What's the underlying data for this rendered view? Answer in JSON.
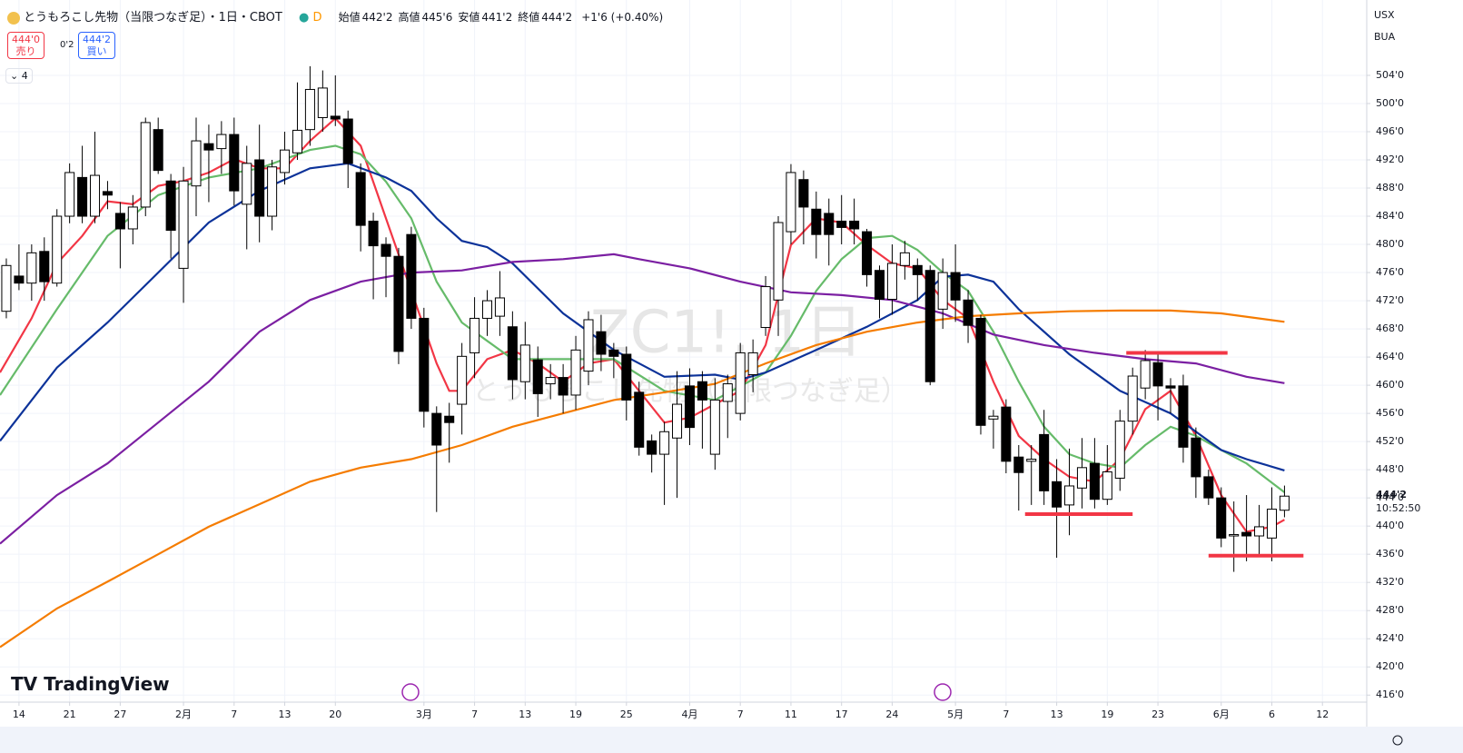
{
  "header": {
    "title": "とうもろこし先物（当限つなぎ足）・1日・CBOT",
    "badge": "D",
    "quote": [
      {
        "label": "始値",
        "value": "442'2"
      },
      {
        "label": "高値",
        "value": "445'6"
      },
      {
        "label": "安値",
        "value": "441'2"
      },
      {
        "label": "終値",
        "value": "444'2"
      }
    ],
    "change": "+1'6 (+0.40%)",
    "sell_price": "444'0",
    "sell": "売り",
    "spread": "0'2",
    "buy_price": "444'2",
    "buy": "買い",
    "indicators": "4",
    "currency": "USX",
    "unit": "BUA"
  },
  "watermark": {
    "symbol": "ZC1!, 1日",
    "name": "とうもろこし先物（当限つなぎ足）"
  },
  "logo": "TradingView",
  "price_label": "444'2",
  "countdown": "10:52:50",
  "chart_data": {
    "type": "candlestick",
    "xlim": [
      -0.5,
      107.5
    ],
    "ylim": [
      415,
      514.7
    ],
    "grid": true,
    "yticks": [
      {
        "value": 416,
        "label": "416'0"
      },
      {
        "value": 420,
        "label": "420'0"
      },
      {
        "value": 424,
        "label": "424'0"
      },
      {
        "value": 428,
        "label": "428'0"
      },
      {
        "value": 432,
        "label": "432'0"
      },
      {
        "value": 436,
        "label": "436'0"
      },
      {
        "value": 440,
        "label": "440'0"
      },
      {
        "value": 444,
        "label": "444'0"
      },
      {
        "value": 448,
        "label": "448'0"
      },
      {
        "value": 452,
        "label": "452'0"
      },
      {
        "value": 456,
        "label": "456'0"
      },
      {
        "value": 460,
        "label": "460'0"
      },
      {
        "value": 464,
        "label": "464'0"
      },
      {
        "value": 468,
        "label": "468'0"
      },
      {
        "value": 472,
        "label": "472'0"
      },
      {
        "value": 476,
        "label": "476'0"
      },
      {
        "value": 480,
        "label": "480'0"
      },
      {
        "value": 484,
        "label": "484'0"
      },
      {
        "value": 488,
        "label": "488'0"
      },
      {
        "value": 492,
        "label": "492'0"
      },
      {
        "value": 496,
        "label": "496'0"
      },
      {
        "value": 500,
        "label": "500'0"
      },
      {
        "value": 504,
        "label": "504'0"
      }
    ],
    "xticks": [
      {
        "value": 1,
        "label": "14"
      },
      {
        "value": 5,
        "label": "21"
      },
      {
        "value": 9,
        "label": "27"
      },
      {
        "value": 14,
        "label": "2月"
      },
      {
        "value": 18,
        "label": "7"
      },
      {
        "value": 22,
        "label": "13"
      },
      {
        "value": 26,
        "label": "20"
      },
      {
        "value": 33,
        "label": "3月"
      },
      {
        "value": 37,
        "label": "7"
      },
      {
        "value": 41,
        "label": "13"
      },
      {
        "value": 45,
        "label": "19"
      },
      {
        "value": 49,
        "label": "25"
      },
      {
        "value": 54,
        "label": "4月"
      },
      {
        "value": 58,
        "label": "7"
      },
      {
        "value": 62,
        "label": "11"
      },
      {
        "value": 66,
        "label": "17"
      },
      {
        "value": 70,
        "label": "24"
      },
      {
        "value": 75,
        "label": "5月"
      },
      {
        "value": 79,
        "label": "7"
      },
      {
        "value": 83,
        "label": "13"
      },
      {
        "value": 87,
        "label": "19"
      },
      {
        "value": 91,
        "label": "23"
      },
      {
        "value": 96,
        "label": "6月"
      },
      {
        "value": 100,
        "label": "6"
      },
      {
        "value": 104,
        "label": "12"
      }
    ],
    "up_color": "#ffffff",
    "down_color": "#000000",
    "open": [
      470.5,
      475.5,
      474.5,
      479,
      474.5,
      484,
      489.5,
      484,
      487.5,
      484.4,
      482.2,
      485.3,
      496.3,
      489,
      476.6,
      488.3,
      494.3,
      493.6,
      495.6,
      485.7,
      492,
      484,
      490.2,
      493,
      496.3,
      498,
      498.2,
      497.8,
      490.2,
      483.3,
      480,
      478.3,
      481.4,
      469.5,
      456,
      455.6,
      457.3,
      464.6,
      469.5,
      469.8,
      468.3,
      460.5,
      463.6,
      460.2,
      461.1,
      458.6,
      462,
      467.6,
      465,
      464.4,
      459,
      452.1,
      450.2,
      452.5,
      459.9,
      460.5,
      450.2,
      457.7,
      456,
      461.5,
      468.2,
      472.1,
      481.8,
      489.2,
      485,
      484.4,
      483.3,
      483.3,
      481.8,
      476.3,
      472.2,
      477,
      477,
      476.3,
      470.8,
      476,
      472.1,
      469.5,
      455.2,
      456.9,
      449.8,
      449.2,
      453,
      446.3,
      443,
      445.4,
      448.9,
      443.8,
      446.8,
      454.9,
      459.6,
      463.2,
      459.9,
      459.9,
      452.5,
      447,
      444,
      438.6,
      439.1,
      438.6,
      438.3,
      442.25
    ],
    "high": [
      478,
      480,
      480,
      481,
      485,
      491.5,
      494,
      496,
      489,
      486,
      487,
      498,
      498,
      490,
      491,
      498,
      497,
      497.5,
      498,
      494,
      497,
      492,
      496,
      503,
      505.3,
      504.7,
      504,
      499,
      491.5,
      484.5,
      481,
      479.5,
      482.5,
      471,
      457,
      457.5,
      466,
      472.5,
      473.5,
      476.2,
      470.5,
      469,
      465.5,
      463,
      463,
      467,
      470.5,
      470,
      466,
      465.5,
      460.5,
      453,
      454.8,
      462,
      462.4,
      462,
      461,
      461.5,
      466,
      466.5,
      475.5,
      484,
      491.4,
      490.5,
      487.5,
      486.5,
      487,
      486.5,
      482.2,
      477,
      480,
      480.5,
      478,
      477,
      478,
      480,
      473.5,
      470,
      456.5,
      458,
      451.5,
      451.5,
      456.5,
      449.5,
      451,
      452.5,
      452.5,
      451.5,
      456.5,
      462.5,
      465,
      464.5,
      461,
      461.5,
      454,
      448,
      445.5,
      443.5,
      444.4,
      443,
      445.5,
      445.75
    ],
    "low": [
      469.5,
      473.5,
      472,
      472,
      474,
      483,
      483,
      483,
      485,
      476.6,
      480,
      484,
      490,
      478,
      471.7,
      484,
      486,
      490,
      485.5,
      479.3,
      480.3,
      482,
      488.5,
      492,
      494,
      496,
      496.8,
      488,
      479,
      472.2,
      472.5,
      463,
      468,
      454,
      442,
      449,
      453,
      461,
      467,
      467,
      458,
      458,
      455.5,
      458,
      456,
      456.5,
      460,
      462,
      461,
      455,
      450,
      447.6,
      443,
      444,
      451.5,
      451,
      448,
      452.5,
      455,
      459,
      467,
      467,
      480,
      480,
      478,
      477,
      480,
      480,
      474,
      469.5,
      470,
      475,
      472,
      460,
      468,
      469,
      466,
      453,
      451,
      447.5,
      442.2,
      443,
      443,
      435.5,
      438.7,
      442.5,
      442.5,
      443,
      445,
      453,
      458,
      455,
      456,
      449,
      444,
      443,
      437,
      433.5,
      435,
      436,
      435,
      441.25
    ],
    "close": [
      477,
      474.5,
      478.8,
      474.7,
      484,
      490.2,
      484,
      489.8,
      487,
      482.2,
      485.3,
      497.3,
      490.5,
      482,
      489,
      494.7,
      493.4,
      495.6,
      487.6,
      491.5,
      484,
      491,
      493.4,
      496.2,
      502,
      502.2,
      497.8,
      491.5,
      482.7,
      479.8,
      478.3,
      464.8,
      469.5,
      456.3,
      451.5,
      454.7,
      464.1,
      469.5,
      472,
      472.4,
      460.8,
      465.7,
      458.8,
      461.1,
      458.6,
      465,
      469.3,
      464.4,
      464.1,
      457.9,
      451.2,
      450.2,
      453.4,
      457.3,
      454,
      457.9,
      457.9,
      460.2,
      464.6,
      464.6,
      474,
      483.1,
      490.2,
      485.3,
      481.4,
      481.4,
      482.4,
      482.2,
      475.7,
      472.2,
      477.3,
      478.8,
      475.7,
      460.5,
      476,
      472.1,
      468.5,
      454.3,
      455.6,
      449.2,
      447.6,
      449.5,
      445,
      442.7,
      445.7,
      448.3,
      443.8,
      447.7,
      454.9,
      461.3,
      463.5,
      459.9,
      459.6,
      451.2,
      447,
      444,
      438.3,
      438.8,
      438.6,
      439.9,
      442.4,
      444.25
    ],
    "series": [
      {
        "color": "#f23645",
        "x": [
          -0.5,
          2,
          4,
          6,
          8,
          10,
          12,
          14,
          16,
          18,
          20,
          22,
          24,
          26,
          28,
          30,
          32,
          34,
          35,
          36,
          38,
          40,
          42,
          44,
          46,
          48,
          50,
          52,
          54,
          56,
          58,
          60,
          62,
          64,
          66,
          68,
          70,
          72,
          74,
          76,
          78,
          80,
          82,
          84,
          86,
          88,
          90,
          92,
          94,
          96,
          98,
          100,
          101
        ],
        "values": [
          461.8,
          469.5,
          477.3,
          481.2,
          486.1,
          485.7,
          488.3,
          489,
          490.2,
          492.1,
          490.8,
          490.8,
          494.7,
          497.9,
          494,
          483.7,
          473.4,
          463.1,
          459.2,
          459.2,
          463.7,
          465,
          463.1,
          460.5,
          463.1,
          463.7,
          459.2,
          454.7,
          455.4,
          457.3,
          459.2,
          465.7,
          479.9,
          483.7,
          483.1,
          479.9,
          477.3,
          476.6,
          472.1,
          469.5,
          460.5,
          452.8,
          449.5,
          447,
          446.3,
          449.5,
          456.6,
          459.2,
          452.8,
          444.4,
          439.2,
          439.9,
          440.9
        ]
      },
      {
        "color": "#66bb6a",
        "x": [
          -0.5,
          4,
          8,
          12,
          16,
          20,
          24,
          26,
          28,
          30,
          32,
          34,
          36,
          38,
          40,
          44,
          48,
          52,
          56,
          60,
          62,
          64,
          66,
          68,
          70,
          72,
          74,
          76,
          78,
          80,
          82,
          84,
          86,
          88,
          90,
          92,
          94,
          96,
          98,
          101
        ],
        "values": [
          458.6,
          470.8,
          481.2,
          487,
          489.5,
          490.8,
          493.4,
          494,
          492.8,
          488.9,
          483.7,
          474.7,
          468.9,
          466.3,
          463.7,
          463.7,
          463.7,
          459.2,
          457.9,
          461.8,
          467,
          473.4,
          477.9,
          480.9,
          481.2,
          479.2,
          476,
          473.4,
          467.6,
          460.5,
          454.1,
          450.2,
          448.9,
          448.3,
          451.5,
          454.1,
          452.8,
          450.8,
          448.9,
          444.8
        ]
      },
      {
        "color": "#0c3299",
        "x": [
          -0.5,
          4,
          8,
          12,
          16,
          20,
          24,
          27,
          30,
          32,
          34,
          36,
          38,
          40,
          44,
          48,
          52,
          56,
          58,
          60,
          64,
          68,
          72,
          74,
          76,
          78,
          80,
          84,
          88,
          92,
          96,
          98,
          101
        ],
        "values": [
          452.1,
          462.5,
          468.9,
          476,
          483.1,
          487.6,
          490.8,
          491.5,
          489.5,
          487.6,
          483.7,
          480.5,
          479.6,
          477.3,
          470.2,
          465,
          461.2,
          461.5,
          460.8,
          461.8,
          465,
          468.3,
          472.1,
          475.4,
          475.7,
          474.7,
          470.8,
          464.4,
          459.2,
          456,
          450.8,
          449.5,
          447.9
        ]
      },
      {
        "color": "#7b1fa2",
        "x": [
          -0.5,
          4,
          8,
          12,
          16,
          20,
          24,
          28,
          32,
          36,
          40,
          44,
          48,
          50,
          54,
          58,
          62,
          66,
          70,
          74,
          78,
          82,
          86,
          90,
          94,
          98,
          101
        ],
        "values": [
          437.5,
          444.4,
          448.9,
          454.7,
          460.5,
          467.6,
          472.1,
          474.7,
          476,
          476.3,
          477.5,
          477.9,
          478.6,
          477.9,
          476.6,
          474.7,
          473.2,
          472.8,
          472.1,
          470.2,
          467.2,
          465.7,
          464.6,
          463.7,
          463.1,
          461.2,
          460.3
        ]
      },
      {
        "color": "#f57c00",
        "x": [
          -0.5,
          4,
          8,
          12,
          16,
          20,
          24,
          28,
          32,
          36,
          40,
          44,
          48,
          52,
          56,
          60,
          64,
          68,
          72,
          76,
          80,
          84,
          88,
          92,
          96,
          101
        ],
        "values": [
          422.8,
          428.3,
          432.1,
          436,
          439.9,
          443.1,
          446.3,
          448.3,
          449.5,
          451.5,
          454.1,
          456,
          457.9,
          459,
          460.2,
          463.1,
          465.7,
          467.6,
          468.9,
          469.8,
          470.2,
          470.5,
          470.6,
          470.6,
          470.2,
          469
        ]
      }
    ],
    "levels": [
      {
        "price": 464.6,
        "from": 88.5,
        "to": 96.5,
        "color": "#f23645"
      },
      {
        "price": 441.7,
        "from": 80.5,
        "to": 89,
        "color": "#f23645"
      },
      {
        "price": 435.8,
        "from": 95,
        "to": 102.5,
        "color": "#f23645"
      }
    ]
  }
}
